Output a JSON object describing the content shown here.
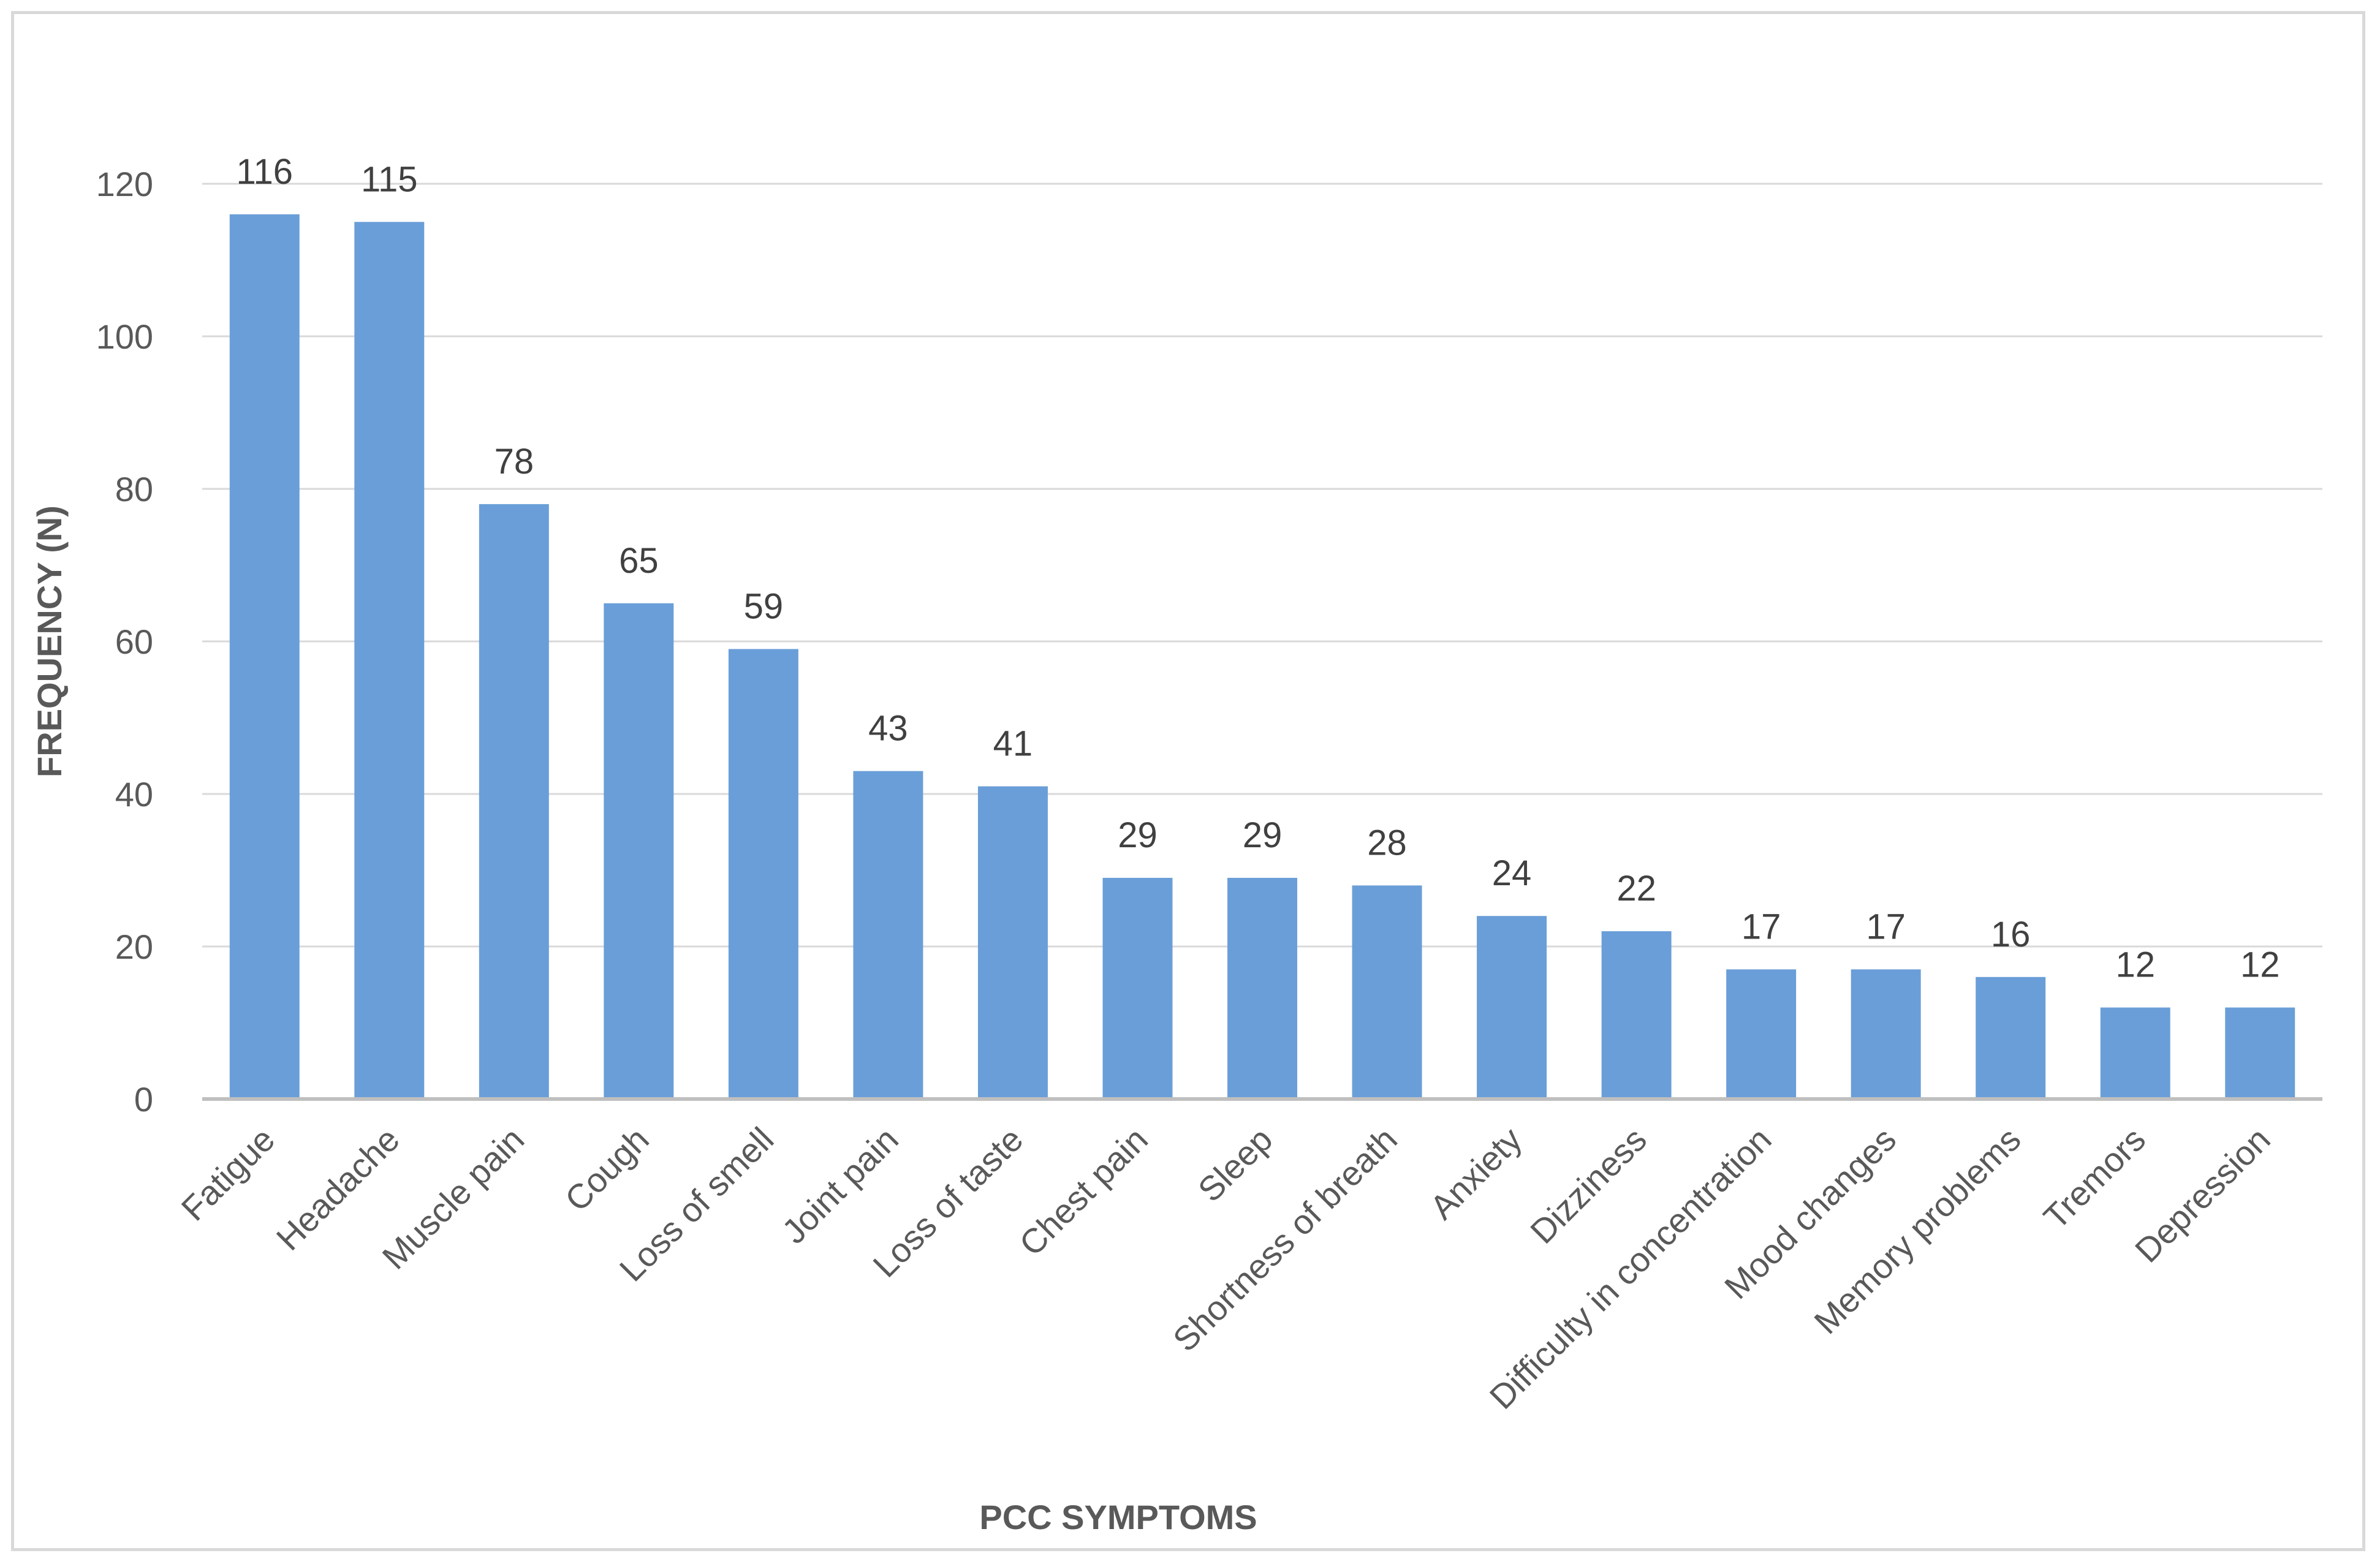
{
  "chart_data": {
    "type": "bar",
    "xlabel": "PCC SYMPTOMS",
    "ylabel": "FREQUENCY (N)",
    "categories": [
      "Fatigue",
      "Headache",
      "Muscle pain",
      "Cough",
      "Loss of smell",
      "Joint pain",
      "Loss of taste",
      "Chest pain",
      "Sleep",
      "Shortness of breath",
      "Anxiety",
      "Dizziness",
      "Difficulty in concentration",
      "Mood changes",
      "Memory problems",
      "Tremors",
      "Depression"
    ],
    "values": [
      116,
      115,
      78,
      65,
      59,
      43,
      41,
      29,
      29,
      28,
      24,
      22,
      17,
      17,
      16,
      12,
      12
    ],
    "ylim": [
      0,
      120
    ],
    "yticks": [
      0,
      20,
      40,
      60,
      80,
      100,
      120
    ],
    "grid": true,
    "legend": "none",
    "bar_color": "#6a9ed8",
    "grid_color": "#d9d9d9",
    "axis_color": "#bfbfbf"
  }
}
